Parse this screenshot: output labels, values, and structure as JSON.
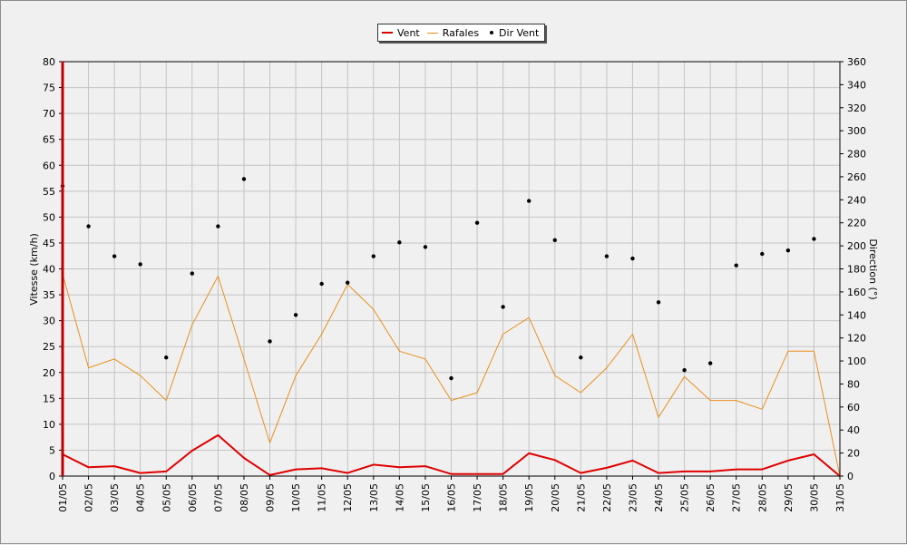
{
  "chart_data": {
    "type": "line",
    "legend_position": "top-center",
    "grid": true,
    "categories": [
      "01/05",
      "02/05",
      "03/05",
      "04/05",
      "05/05",
      "06/05",
      "07/05",
      "08/05",
      "09/05",
      "10/05",
      "11/05",
      "12/05",
      "13/05",
      "14/05",
      "15/05",
      "16/05",
      "17/05",
      "18/05",
      "19/05",
      "20/05",
      "21/05",
      "22/05",
      "23/05",
      "24/05",
      "25/05",
      "26/05",
      "27/05",
      "28/05",
      "29/05",
      "30/05",
      "31/05"
    ],
    "ylabel": "Vitesse (km/h)",
    "y2label": "Direction (°)",
    "ylim": [
      0,
      80
    ],
    "y2lim": [
      0,
      360
    ],
    "yticks": [
      0,
      5,
      10,
      15,
      20,
      25,
      30,
      35,
      40,
      45,
      50,
      55,
      60,
      65,
      70,
      75,
      80
    ],
    "y2ticks": [
      0,
      20,
      40,
      60,
      80,
      100,
      120,
      140,
      160,
      180,
      200,
      220,
      240,
      260,
      280,
      300,
      320,
      340,
      360
    ],
    "series": [
      {
        "name": "Vent",
        "axis": "left",
        "color": "#e00000",
        "style": "line-thick",
        "values": [
          4.2,
          1.7,
          1.9,
          0.6,
          0.9,
          4.9,
          7.9,
          3.5,
          0.2,
          1.3,
          1.5,
          0.6,
          2.2,
          1.7,
          1.9,
          0.4,
          0.4,
          0.4,
          4.4,
          3.1,
          0.6,
          1.6,
          3.0,
          0.6,
          0.9,
          0.9,
          1.3,
          1.3,
          3.0,
          4.2,
          0.0
        ]
      },
      {
        "name": "Rafales",
        "axis": "left",
        "color": "#e8901c",
        "style": "line-thin",
        "values": [
          39.0,
          20.9,
          22.6,
          19.4,
          14.6,
          29.2,
          38.6,
          22.6,
          6.4,
          19.4,
          27.4,
          37.0,
          32.2,
          24.1,
          22.6,
          14.6,
          16.1,
          27.4,
          30.6,
          19.4,
          16.1,
          20.9,
          27.4,
          11.3,
          19.2,
          14.6,
          14.6,
          12.9,
          24.1,
          24.1,
          0.0
        ]
      },
      {
        "name": "Dir Vent",
        "axis": "right",
        "color": "#000000",
        "style": "dots",
        "values": [
          252,
          217,
          191,
          184,
          103,
          176,
          217,
          258,
          117,
          140,
          167,
          168,
          191,
          203,
          199,
          85,
          220,
          147,
          239,
          205,
          103,
          191,
          189,
          151,
          92,
          98,
          183,
          193,
          196,
          206,
          null
        ]
      }
    ]
  }
}
